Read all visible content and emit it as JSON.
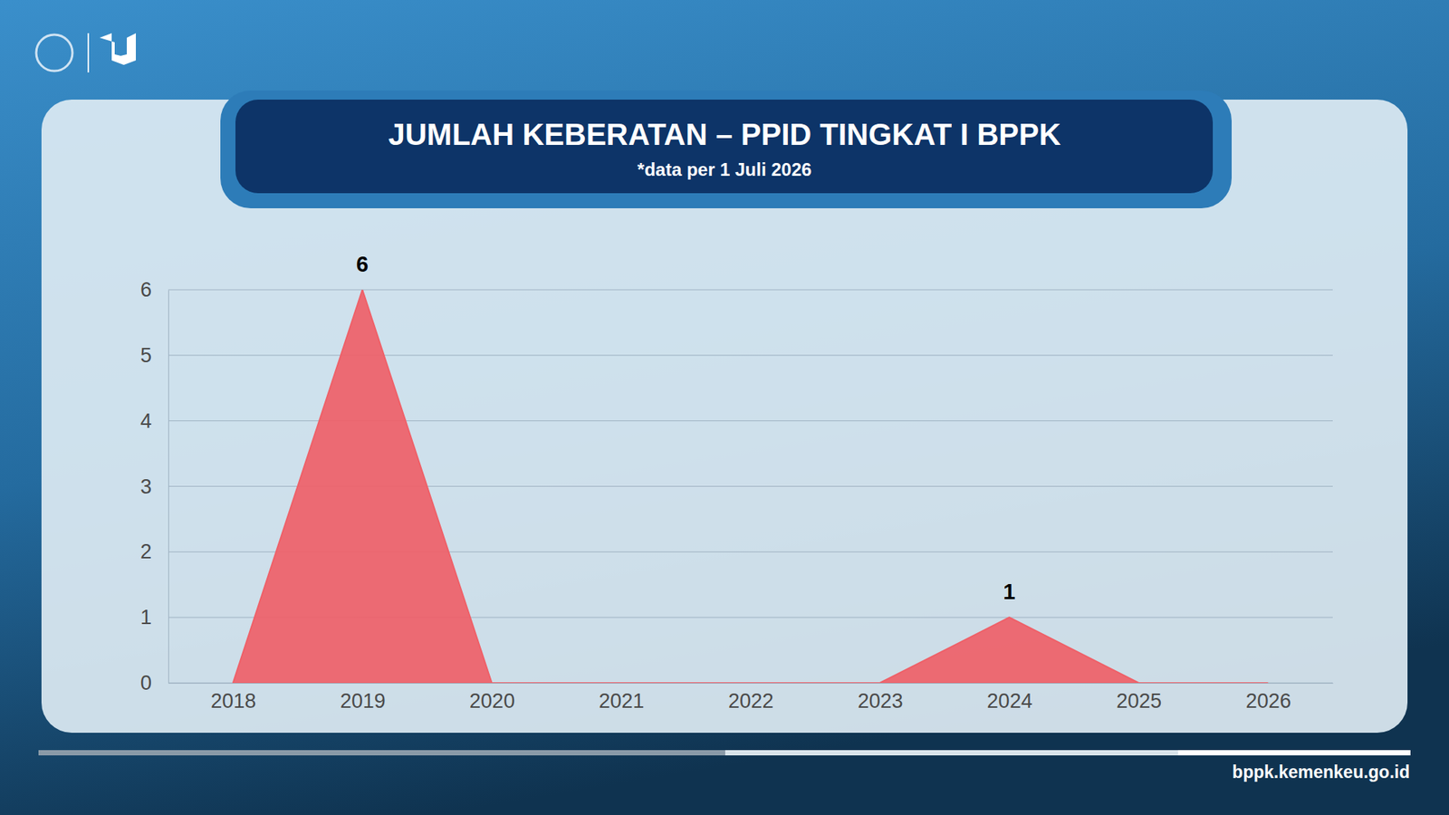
{
  "chart_data": {
    "type": "area",
    "title": "JUMLAH KEBERATAN – PPID TINGKAT I BPPK",
    "subtitle": "*data per 1 Juli 2026",
    "categories": [
      "2018",
      "2019",
      "2020",
      "2021",
      "2022",
      "2023",
      "2024",
      "2025",
      "2026"
    ],
    "values": [
      0,
      6,
      0,
      0,
      0,
      0,
      1,
      0,
      0
    ],
    "value_labels": [
      null,
      "6",
      null,
      null,
      null,
      null,
      "1",
      null,
      null
    ],
    "color": "#ef6068",
    "ylim": [
      0,
      6
    ],
    "yticks": [
      0,
      1,
      2,
      3,
      4,
      5,
      6
    ],
    "grid": true,
    "data_labels": true
  },
  "footer": "bppk.kemenkeu.go.id"
}
